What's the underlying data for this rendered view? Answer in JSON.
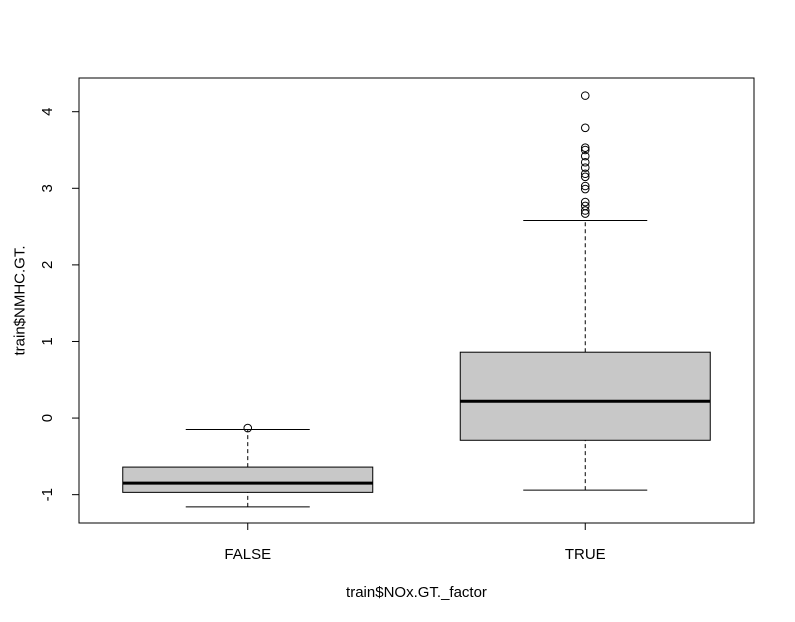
{
  "chart_data": {
    "type": "boxplot",
    "title": "",
    "xlabel": "train$NOx.GT._factor",
    "ylabel": "train$NMHC.GT.",
    "categories": [
      "FALSE",
      "TRUE"
    ],
    "ylim": [
      -1.37,
      4.44
    ],
    "y_ticks": [
      -1,
      0,
      1,
      2,
      3,
      4
    ],
    "y_tick_labels": [
      "-1",
      "0",
      "1",
      "2",
      "3",
      "4"
    ],
    "grid": false,
    "box_fill": "#c8c8c8",
    "line_color": "#000000",
    "boxes": [
      {
        "category": "FALSE",
        "whisker_low": -1.16,
        "q1": -0.97,
        "median": -0.85,
        "q3": -0.64,
        "whisker_high": -0.15,
        "outliers": [
          -0.13
        ]
      },
      {
        "category": "TRUE",
        "whisker_low": -0.94,
        "q1": -0.29,
        "median": 0.22,
        "q3": 0.86,
        "whisker_high": 2.58,
        "outliers": [
          2.67,
          2.71,
          2.77,
          2.82,
          2.99,
          3.03,
          3.15,
          3.19,
          3.27,
          3.34,
          3.42,
          3.5,
          3.53,
          3.79,
          4.21
        ]
      }
    ]
  }
}
